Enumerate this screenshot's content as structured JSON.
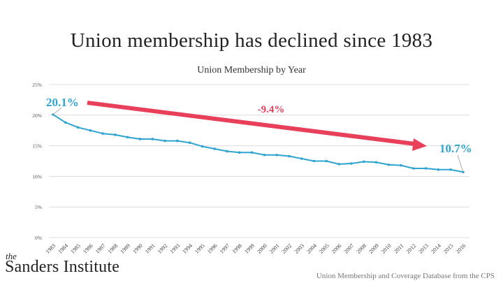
{
  "page": {
    "headline": "Union membership has declined since 1983",
    "logo_the": "the",
    "logo_name": "Sanders Institute",
    "source": "Union Membership and Coverage Database from the CPS"
  },
  "chart_data": {
    "type": "line",
    "title": "Union Membership by Year",
    "xlabel": "",
    "ylabel": "",
    "ylim": [
      0,
      25
    ],
    "yticks": [
      0,
      5,
      10,
      15,
      20,
      25
    ],
    "ytick_labels": [
      "0%",
      "5%",
      "10%",
      "15%",
      "20%",
      "25%"
    ],
    "grid": true,
    "categories": [
      "1983",
      "1984",
      "1985",
      "1986",
      "1987",
      "1988",
      "1989",
      "1990",
      "1991",
      "1992",
      "1993",
      "1994",
      "1995",
      "1996",
      "1997",
      "1998",
      "1999",
      "2000",
      "2001",
      "2002",
      "2003",
      "2004",
      "2005",
      "2006",
      "2007",
      "2008",
      "2009",
      "2010",
      "2011",
      "2012",
      "2013",
      "2014",
      "2015",
      "2016"
    ],
    "series": [
      {
        "name": "Union Membership",
        "color": "#2fa4d0",
        "values": [
          20.1,
          18.8,
          18.0,
          17.5,
          17.0,
          16.8,
          16.4,
          16.1,
          16.1,
          15.8,
          15.8,
          15.5,
          14.9,
          14.5,
          14.1,
          13.9,
          13.9,
          13.5,
          13.5,
          13.3,
          12.9,
          12.5,
          12.5,
          12.0,
          12.1,
          12.4,
          12.3,
          11.9,
          11.8,
          11.3,
          11.3,
          11.1,
          11.1,
          10.7
        ]
      }
    ],
    "annotations": [
      {
        "text": "20.1%",
        "category": "1983",
        "color": "#2fa4d0"
      },
      {
        "text": "10.7%",
        "category": "2016",
        "color": "#2fa4d0"
      },
      {
        "text": "-9.4%",
        "color": "#e8405a",
        "kind": "trend-arrow-label"
      }
    ],
    "trend_arrow": {
      "color": "#e8405a",
      "direction": "down-right"
    }
  }
}
